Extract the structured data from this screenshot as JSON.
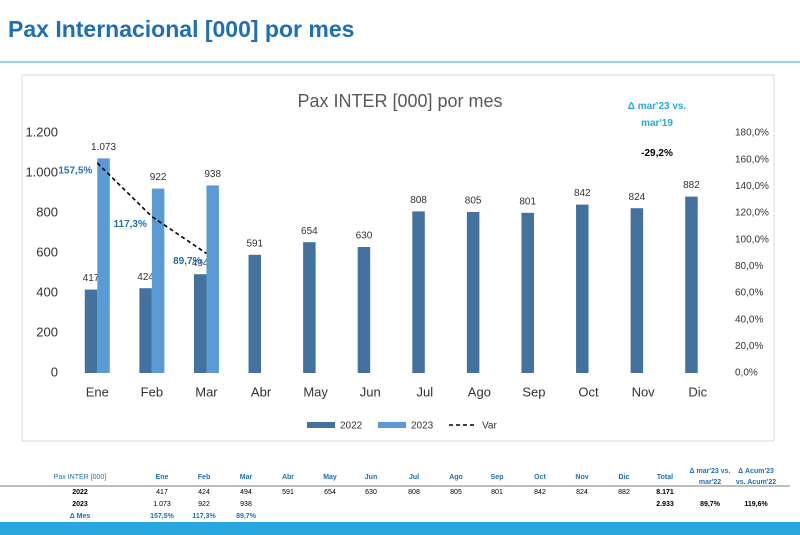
{
  "header": {
    "title": "Pax Internacional [000] por mes"
  },
  "chart_data": {
    "type": "bar",
    "title": "Pax INTER [000] por mes",
    "annotation": {
      "label": "Δ mar'23 vs. mar'19",
      "value": "-29,2%"
    },
    "categories": [
      "Ene",
      "Feb",
      "Mar",
      "Abr",
      "May",
      "Jun",
      "Jul",
      "Ago",
      "Sep",
      "Oct",
      "Nov",
      "Dic"
    ],
    "series": [
      {
        "name": "2022",
        "color": "#44729e",
        "values": [
          417,
          424,
          494,
          591,
          654,
          630,
          808,
          805,
          801,
          842,
          824,
          882
        ]
      },
      {
        "name": "2023",
        "color": "#5b9bd5",
        "values": [
          1073,
          922,
          938,
          null,
          null,
          null,
          null,
          null,
          null,
          null,
          null,
          null
        ],
        "value_labels": [
          "1.073",
          "922",
          "938",
          null,
          null,
          null,
          null,
          null,
          null,
          null,
          null,
          null
        ]
      },
      {
        "name": "Var",
        "type": "line",
        "axis": "y2",
        "color": "#000000",
        "label_color": "#1f6fb4",
        "dashed": true,
        "values": [
          157.5,
          117.3,
          89.7,
          null,
          null,
          null,
          null,
          null,
          null,
          null,
          null,
          null
        ],
        "value_labels": [
          "157,5%",
          "117,3%",
          "89,7%",
          null,
          null,
          null,
          null,
          null,
          null,
          null,
          null,
          null
        ]
      }
    ],
    "ylim": [
      0,
      1200
    ],
    "yticks": [
      0,
      200,
      400,
      600,
      800,
      {
        "value": 1000,
        "label": "1.000"
      },
      {
        "value": 1200,
        "label": "1.200"
      }
    ],
    "y2lim": [
      0,
      180
    ],
    "y2ticks": [
      {
        "value": 0,
        "label": "0,0%"
      },
      {
        "value": 20,
        "label": "20,0%"
      },
      {
        "value": 40,
        "label": "40,0%"
      },
      {
        "value": 60,
        "label": "60,0%"
      },
      {
        "value": 80,
        "label": "80,0%"
      },
      {
        "value": 100,
        "label": "100,0%"
      },
      {
        "value": 120,
        "label": "120,0%"
      },
      {
        "value": 140,
        "label": "140,0%"
      },
      {
        "value": 160,
        "label": "160,0%"
      },
      {
        "value": 180,
        "label": "180,0%"
      }
    ],
    "grid": false,
    "legend": "bottom"
  },
  "table": {
    "header": [
      "Pax INTER [000]",
      "Ene",
      "Feb",
      "Mar",
      "Abr",
      "May",
      "Jun",
      "Jul",
      "Ago",
      "Sep",
      "Oct",
      "Nov",
      "Dic",
      "Total",
      "Δ mar'23 vs. mar'22",
      "Δ Acum'23 vs. Acum'22"
    ],
    "rows": [
      [
        "2022",
        "417",
        "424",
        "494",
        "591",
        "654",
        "630",
        "808",
        "805",
        "801",
        "842",
        "824",
        "882",
        "8.171",
        null,
        null
      ],
      [
        "2023",
        "1.073",
        "922",
        "938",
        null,
        null,
        null,
        null,
        null,
        null,
        null,
        null,
        null,
        "2.933",
        "89,7%",
        "119,6%"
      ],
      [
        "Δ Mes",
        "157,5%",
        "117,3%",
        "89,7%",
        null,
        null,
        null,
        null,
        null,
        null,
        null,
        null,
        null,
        null,
        null,
        null
      ]
    ]
  }
}
